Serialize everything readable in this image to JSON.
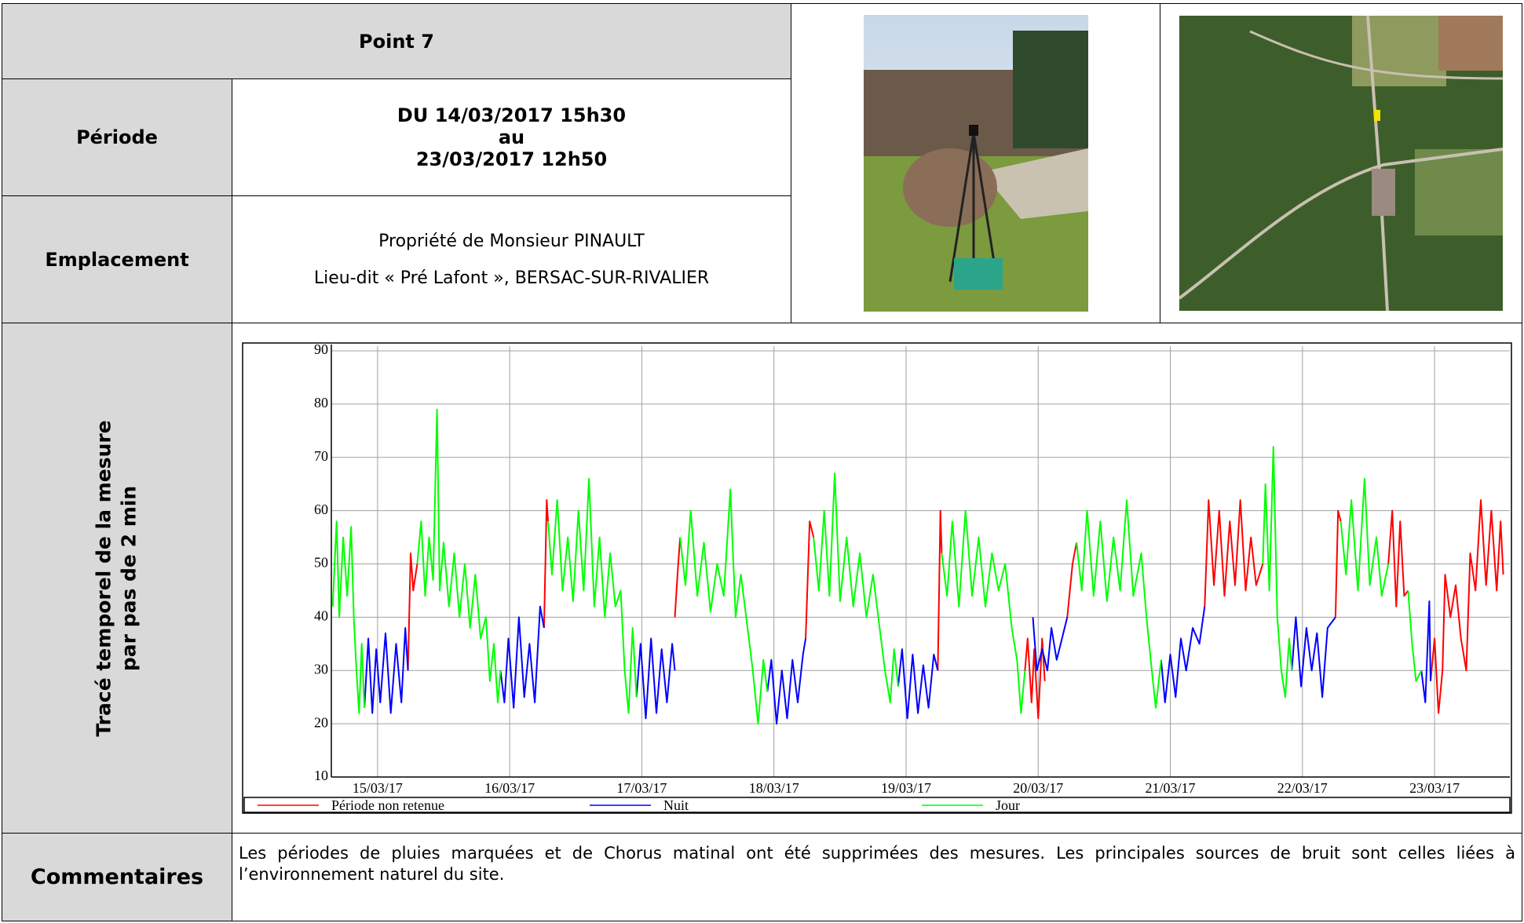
{
  "header": {
    "title": "Point 7"
  },
  "periode": {
    "label": "Période",
    "lines": [
      "DU 14/03/2017 15h30",
      "au",
      "23/03/2017 12h50"
    ]
  },
  "emplacement": {
    "label": "Emplacement",
    "lines": [
      "Propriété de Monsieur PINAULT",
      "Lieu-dit « Pré Lafont », BERSAC-SUR-RIVALIER"
    ]
  },
  "trace": {
    "lines": [
      "Tracé temporel de la mesure",
      "par pas de 2 min"
    ]
  },
  "commentaires": {
    "label": "Commentaires",
    "text": "Les périodes de pluies marquées et de Chorus matinal ont été supprimées des mesures. Les principales sources de bruit sont celles liées à l’environnement naturel du site."
  },
  "chart_data": {
    "type": "line",
    "grid": true,
    "xlim": [
      -0.35,
      8.57
    ],
    "xticks": [
      {
        "value": 0,
        "label": "15/03/17"
      },
      {
        "value": 1,
        "label": "16/03/17"
      },
      {
        "value": 2,
        "label": "17/03/17"
      },
      {
        "value": 3,
        "label": "18/03/17"
      },
      {
        "value": 4,
        "label": "19/03/17"
      },
      {
        "value": 5,
        "label": "20/03/17"
      },
      {
        "value": 6,
        "label": "21/03/17"
      },
      {
        "value": 7,
        "label": "22/03/17"
      },
      {
        "value": 8,
        "label": "23/03/17"
      }
    ],
    "ylim": [
      10,
      90
    ],
    "yticks": [
      10,
      20,
      30,
      40,
      50,
      60,
      70,
      80,
      90
    ],
    "series": [
      {
        "name": "Période non retenue",
        "color": "#ff0000",
        "x": [
          0.23,
          0.25,
          0.27,
          0.3,
          null,
          1.26,
          1.28,
          1.29,
          null,
          2.25,
          2.27,
          2.29,
          null,
          3.24,
          3.27,
          3.3,
          null,
          4.24,
          4.26,
          4.27,
          null,
          4.9,
          4.92,
          4.95,
          4.97,
          5.0,
          5.03,
          5.05,
          null,
          5.22,
          5.26,
          5.29,
          null,
          6.26,
          6.29,
          6.33,
          6.37,
          6.41,
          6.45,
          6.49,
          6.53,
          6.57,
          6.61,
          6.65,
          6.7,
          null,
          7.25,
          7.27,
          7.29,
          null,
          7.65,
          7.68,
          7.71,
          7.74,
          7.77,
          7.8,
          null,
          7.97,
          8.0,
          8.03,
          8.06,
          8.08,
          8.12,
          8.16,
          8.2,
          8.24,
          8.27,
          8.31,
          8.35,
          8.39,
          8.43,
          8.47,
          8.5,
          8.52
        ],
        "values": [
          30,
          52,
          45,
          50,
          null,
          38,
          62,
          58,
          null,
          40,
          48,
          55,
          null,
          36,
          58,
          55,
          null,
          30,
          60,
          52,
          null,
          30,
          36,
          24,
          34,
          21,
          36,
          28,
          null,
          40,
          50,
          54,
          null,
          42,
          62,
          46,
          60,
          44,
          58,
          46,
          62,
          45,
          55,
          46,
          50,
          null,
          40,
          60,
          58,
          null,
          50,
          60,
          42,
          58,
          44,
          45,
          null,
          28,
          36,
          22,
          30,
          48,
          40,
          46,
          36,
          30,
          52,
          45,
          62,
          46,
          60,
          45,
          58,
          48
        ]
      },
      {
        "name": "Nuit",
        "color": "#0000ff",
        "x": [
          -0.1,
          -0.07,
          -0.04,
          -0.01,
          0.02,
          0.06,
          0.1,
          0.14,
          0.18,
          0.21,
          0.23,
          null,
          0.93,
          0.96,
          0.99,
          1.03,
          1.07,
          1.11,
          1.15,
          1.19,
          1.23,
          1.26,
          null,
          1.96,
          1.99,
          2.03,
          2.07,
          2.11,
          2.15,
          2.19,
          2.23,
          2.25,
          null,
          2.95,
          2.98,
          3.02,
          3.06,
          3.1,
          3.14,
          3.18,
          3.22,
          3.24,
          null,
          3.94,
          3.97,
          4.01,
          4.05,
          4.09,
          4.13,
          4.17,
          4.21,
          4.24,
          null,
          4.96,
          4.99,
          5.03,
          5.07,
          5.1,
          5.14,
          5.18,
          5.22,
          null,
          5.93,
          5.96,
          6.0,
          6.04,
          6.08,
          6.12,
          6.17,
          6.22,
          6.26,
          null,
          6.92,
          6.95,
          6.99,
          7.03,
          7.07,
          7.11,
          7.15,
          7.19,
          7.25,
          null,
          7.9,
          7.93,
          7.96,
          7.97
        ],
        "values": [
          23,
          36,
          22,
          34,
          24,
          37,
          22,
          35,
          24,
          38,
          30,
          null,
          30,
          24,
          36,
          23,
          40,
          25,
          35,
          24,
          42,
          38,
          null,
          25,
          35,
          21,
          36,
          22,
          34,
          24,
          35,
          30,
          null,
          26,
          32,
          20,
          30,
          21,
          32,
          24,
          33,
          36,
          null,
          27,
          34,
          21,
          33,
          22,
          31,
          23,
          33,
          30,
          null,
          40,
          30,
          34,
          30,
          38,
          32,
          36,
          40,
          null,
          32,
          24,
          33,
          25,
          36,
          30,
          38,
          35,
          42,
          null,
          30,
          40,
          27,
          38,
          30,
          37,
          25,
          38,
          40,
          null,
          30,
          24,
          43,
          28
        ]
      },
      {
        "name": "Jour",
        "color": "#00ff00",
        "x": [
          -0.34,
          -0.31,
          -0.29,
          -0.26,
          -0.23,
          -0.2,
          -0.18,
          -0.16,
          -0.14,
          -0.12,
          -0.1,
          null,
          0.3,
          0.33,
          0.36,
          0.39,
          0.42,
          0.45,
          0.47,
          0.5,
          0.54,
          0.58,
          0.62,
          0.66,
          0.7,
          0.74,
          0.78,
          0.82,
          0.85,
          0.88,
          0.91,
          0.93,
          null,
          1.29,
          1.32,
          1.36,
          1.4,
          1.44,
          1.48,
          1.52,
          1.56,
          1.6,
          1.64,
          1.68,
          1.72,
          1.76,
          1.8,
          1.84,
          1.87,
          1.9,
          1.93,
          1.96,
          null,
          2.29,
          2.33,
          2.37,
          2.42,
          2.47,
          2.52,
          2.57,
          2.62,
          2.67,
          2.71,
          2.75,
          2.8,
          2.84,
          2.88,
          2.92,
          2.95,
          null,
          3.3,
          3.34,
          3.38,
          3.42,
          3.46,
          3.5,
          3.55,
          3.6,
          3.65,
          3.7,
          3.75,
          3.8,
          3.84,
          3.88,
          3.91,
          3.94,
          null,
          4.27,
          4.31,
          4.35,
          4.4,
          4.45,
          4.5,
          4.55,
          4.6,
          4.65,
          4.7,
          4.75,
          4.8,
          4.84,
          4.87,
          4.9,
          null,
          5.29,
          5.33,
          5.37,
          5.42,
          5.47,
          5.52,
          5.57,
          5.62,
          5.67,
          5.72,
          5.78,
          5.82,
          5.86,
          5.89,
          5.93,
          null,
          6.7,
          6.72,
          6.75,
          6.78,
          6.81,
          6.84,
          6.87,
          6.9,
          6.92,
          null,
          7.29,
          7.33,
          7.37,
          7.42,
          7.47,
          7.51,
          7.56,
          7.6,
          7.65,
          null,
          7.8,
          7.83,
          7.86,
          7.9
        ],
        "values": [
          42,
          58,
          40,
          55,
          44,
          57,
          40,
          30,
          22,
          35,
          23,
          null,
          50,
          58,
          44,
          55,
          47,
          79,
          45,
          54,
          42,
          52,
          40,
          50,
          38,
          48,
          36,
          40,
          28,
          35,
          24,
          30,
          null,
          58,
          48,
          62,
          45,
          55,
          43,
          60,
          45,
          66,
          42,
          55,
          40,
          52,
          42,
          45,
          30,
          22,
          38,
          25,
          null,
          55,
          46,
          60,
          44,
          54,
          41,
          50,
          44,
          64,
          40,
          48,
          38,
          30,
          20,
          32,
          26,
          null,
          55,
          45,
          60,
          44,
          67,
          43,
          55,
          42,
          52,
          40,
          48,
          38,
          30,
          24,
          34,
          27,
          null,
          52,
          44,
          58,
          42,
          60,
          44,
          55,
          42,
          52,
          45,
          50,
          38,
          32,
          22,
          30,
          null,
          54,
          45,
          60,
          44,
          58,
          43,
          55,
          45,
          62,
          44,
          52,
          40,
          30,
          23,
          32,
          null,
          50,
          65,
          45,
          72,
          40,
          30,
          25,
          36,
          30,
          null,
          58,
          48,
          62,
          45,
          66,
          46,
          55,
          44,
          50,
          null,
          45,
          35,
          28,
          30
        ]
      }
    ]
  }
}
